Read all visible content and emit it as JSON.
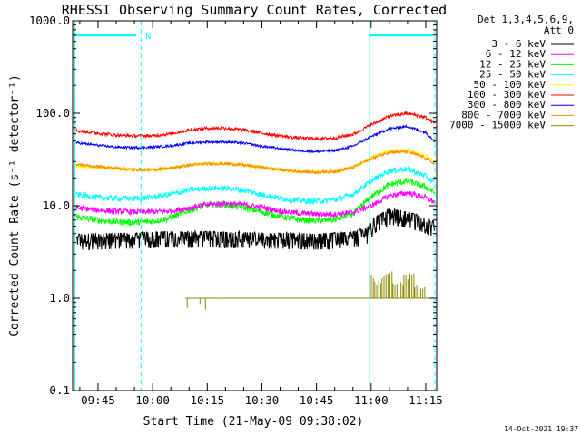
{
  "chart_data": {
    "type": "line",
    "title": "RHESSI Observing Summary Count Rates, Corrected",
    "ylabel": "Corrected Count Rate (s⁻¹ detector⁻¹)",
    "xlabel": "Start Time (21-May-09 09:38:02)",
    "x_ticks": [
      "09:45",
      "10:00",
      "10:15",
      "10:30",
      "10:45",
      "11:00",
      "11:15"
    ],
    "x_tick_minutes": [
      45,
      60,
      75,
      90,
      105,
      120,
      135
    ],
    "xlim_minutes": [
      38.03,
      138
    ],
    "y_scale": "log",
    "ylim": [
      0.1,
      1000
    ],
    "y_ticks": [
      "0.1",
      "1.0",
      "10.0",
      "100.0",
      "1000.0"
    ],
    "y_tick_values": [
      0.1,
      1,
      10,
      100,
      1000
    ],
    "legend_title": [
      "Det 1,3,4,5,6,9,",
      "Att 0"
    ],
    "legend_position": "right",
    "timestamp": "14-Oct-2021 19:37",
    "night_marker_label": "N",
    "markers": {
      "color": "#00ffff",
      "solid_lines_minutes": [
        38.6,
        119.5
      ],
      "dashed_lines_minutes": [
        56.8,
        137.5
      ],
      "bars_minutes": [
        [
          38.6,
          55.5
        ],
        [
          119.5,
          137.0
        ]
      ],
      "bar_level": 700
    },
    "series": [
      {
        "name": "3 - 6 keV",
        "color": "#000000",
        "noise": 0.18,
        "x": [
          39,
          45,
          50,
          55,
          60,
          65,
          70,
          75,
          80,
          85,
          90,
          95,
          100,
          105,
          110,
          115,
          119,
          121,
          125,
          130,
          135,
          137.5
        ],
        "values": [
          4.3,
          4.3,
          4.4,
          4.4,
          4.5,
          4.6,
          4.5,
          4.6,
          4.5,
          4.5,
          4.4,
          4.4,
          4.4,
          4.3,
          4.4,
          4.6,
          5.0,
          6.5,
          8.0,
          7.5,
          6.5,
          5.8
        ]
      },
      {
        "name": "6 - 12 keV",
        "color": "#ff00ff",
        "noise": 0.07,
        "x": [
          39,
          45,
          50,
          55,
          60,
          65,
          70,
          75,
          80,
          85,
          90,
          95,
          100,
          105,
          110,
          115,
          120,
          125,
          130,
          135,
          137.5
        ],
        "values": [
          9.5,
          9.0,
          8.7,
          8.6,
          8.6,
          8.8,
          9.5,
          10.3,
          10.6,
          10.3,
          9.6,
          8.8,
          8.3,
          8.1,
          8.1,
          8.5,
          10.0,
          12.8,
          13.8,
          12.3,
          10.8
        ]
      },
      {
        "name": "12 - 25 keV",
        "color": "#00ff00",
        "noise": 0.08,
        "x": [
          39,
          45,
          50,
          55,
          60,
          65,
          70,
          75,
          80,
          85,
          90,
          95,
          100,
          105,
          110,
          115,
          120,
          125,
          130,
          135,
          137.5
        ],
        "values": [
          7.6,
          7.0,
          6.7,
          6.6,
          6.8,
          7.4,
          9.0,
          10.2,
          10.3,
          9.6,
          8.6,
          7.7,
          7.1,
          6.9,
          7.1,
          8.2,
          12.5,
          17.0,
          18.5,
          16.0,
          13.8
        ]
      },
      {
        "name": "25 - 50 keV",
        "color": "#00ffff",
        "noise": 0.07,
        "x": [
          39,
          45,
          50,
          55,
          60,
          65,
          70,
          75,
          80,
          85,
          90,
          95,
          100,
          105,
          110,
          115,
          120,
          125,
          130,
          135,
          137.5
        ],
        "values": [
          13.2,
          12.3,
          12.0,
          12.0,
          12.3,
          13.3,
          14.8,
          15.5,
          15.5,
          14.7,
          13.2,
          12.1,
          11.4,
          11.2,
          11.6,
          13.3,
          18.5,
          24.0,
          25.0,
          21.0,
          17.5
        ]
      },
      {
        "name": "50 - 100 keV",
        "color": "#ffff00",
        "noise": 0.04,
        "x": [
          39,
          45,
          50,
          55,
          60,
          65,
          70,
          75,
          80,
          85,
          90,
          95,
          100,
          105,
          110,
          115,
          120,
          125,
          130,
          135,
          137.5
        ],
        "values": [
          27,
          26,
          25,
          24.5,
          24.5,
          25.5,
          27.5,
          28.5,
          28.5,
          27.5,
          26,
          24.5,
          23.5,
          23,
          23.5,
          26,
          33,
          39,
          40,
          35,
          30
        ]
      },
      {
        "name": "100 - 300 keV",
        "color": "#ff0000",
        "noise": 0.04,
        "x": [
          39,
          45,
          50,
          55,
          60,
          65,
          70,
          75,
          80,
          85,
          90,
          95,
          100,
          105,
          110,
          115,
          120,
          125,
          130,
          135,
          137.5
        ],
        "values": [
          65,
          61,
          58,
          57,
          57,
          60,
          66,
          69,
          69,
          66,
          61,
          57,
          54,
          53,
          54,
          59,
          75,
          93,
          100,
          90,
          78
        ]
      },
      {
        "name": "300 - 800 keV",
        "color": "#0000ff",
        "noise": 0.03,
        "x": [
          39,
          45,
          50,
          55,
          60,
          65,
          70,
          75,
          80,
          85,
          90,
          95,
          100,
          105,
          110,
          115,
          120,
          125,
          130,
          135,
          137.5
        ],
        "values": [
          48,
          45,
          43,
          42.5,
          43,
          44.5,
          47.5,
          49,
          49,
          47.5,
          44,
          41.5,
          39.5,
          38.5,
          39.5,
          44,
          56,
          68,
          72,
          62,
          50
        ]
      },
      {
        "name": "800 - 7000 keV",
        "color": "#ff8c00",
        "noise": 0.035,
        "x": [
          39,
          45,
          50,
          55,
          60,
          65,
          70,
          75,
          80,
          85,
          90,
          95,
          100,
          105,
          110,
          115,
          120,
          125,
          130,
          135,
          137.5
        ],
        "values": [
          28,
          26.5,
          25.5,
          24.5,
          24.5,
          25.5,
          27.5,
          28.5,
          28.5,
          27.5,
          26,
          24.5,
          23.5,
          23,
          23.5,
          26,
          32.5,
          38,
          38.5,
          33,
          28
        ]
      },
      {
        "name": "7000 - 15000 keV",
        "color": "#8b8b00",
        "noise": 0,
        "x": [
          69,
          73,
          78,
          119.5,
          121,
          123,
          126,
          129,
          132,
          135,
          137.5
        ],
        "values": [
          1.0,
          1.0,
          1.0,
          1.0,
          2.0,
          1.6,
          2.0,
          1.5,
          2.0,
          1.4,
          1.0
        ]
      }
    ]
  }
}
